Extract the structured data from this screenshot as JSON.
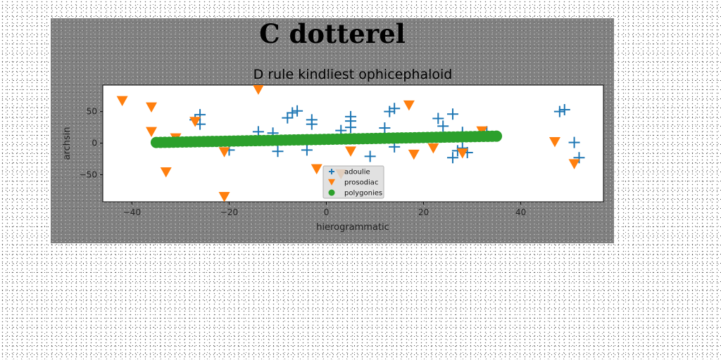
{
  "chart_data": {
    "type": "scatter",
    "suptitle": "C dotterel",
    "title": "D rule kindliest ophicephaloid",
    "xlabel": "hierogrammatic",
    "ylabel": "archsin",
    "xlim": [
      -46,
      57
    ],
    "ylim": [
      -93,
      92
    ],
    "xticks": [
      -40,
      -20,
      0,
      20,
      40
    ],
    "yticks": [
      -50,
      0,
      50
    ],
    "grid": false,
    "legend_position": "lower-center",
    "series": [
      {
        "name": "adoulie",
        "marker": "plus",
        "color": "#1f77b4",
        "points": [
          [
            -26,
            45
          ],
          [
            -27,
            37
          ],
          [
            -26,
            30
          ],
          [
            -14,
            18
          ],
          [
            -11,
            16
          ],
          [
            -8,
            40
          ],
          [
            -7,
            48
          ],
          [
            -6,
            51
          ],
          [
            -3,
            37
          ],
          [
            -3,
            30
          ],
          [
            3,
            20
          ],
          [
            5,
            42
          ],
          [
            5,
            35
          ],
          [
            5,
            25
          ],
          [
            12,
            24
          ],
          [
            13,
            50
          ],
          [
            14,
            55
          ],
          [
            14,
            -6
          ],
          [
            -10,
            -13
          ],
          [
            -4,
            -11
          ],
          [
            9,
            -21
          ],
          [
            23,
            39
          ],
          [
            24,
            27
          ],
          [
            26,
            46
          ],
          [
            28,
            17
          ],
          [
            26,
            -23
          ],
          [
            27,
            -12
          ],
          [
            28,
            -8
          ],
          [
            29,
            -15
          ],
          [
            -20,
            -11
          ],
          [
            33,
            18
          ],
          [
            48,
            50
          ],
          [
            49,
            53
          ],
          [
            51,
            1
          ],
          [
            52,
            -23
          ]
        ]
      },
      {
        "name": "prosodiac",
        "marker": "triangle_down",
        "color": "#ff7f0e",
        "points": [
          [
            -42,
            67
          ],
          [
            -36,
            57
          ],
          [
            -36,
            18
          ],
          [
            -33,
            -46
          ],
          [
            -31,
            8
          ],
          [
            -27,
            34
          ],
          [
            -21,
            -14
          ],
          [
            -21,
            -85
          ],
          [
            -14,
            85
          ],
          [
            -2,
            -41
          ],
          [
            3,
            -49
          ],
          [
            5,
            -13
          ],
          [
            17,
            60
          ],
          [
            18,
            -18
          ],
          [
            22,
            -8
          ],
          [
            28,
            -16
          ],
          [
            32,
            19
          ],
          [
            47,
            2
          ],
          [
            51,
            -33
          ]
        ]
      },
      {
        "name": "polygonies",
        "marker": "circle",
        "color": "#2ca02c",
        "x_start": -35,
        "x_end": 35,
        "y_start": 1,
        "y_end": 11,
        "n_points": 80
      }
    ]
  }
}
